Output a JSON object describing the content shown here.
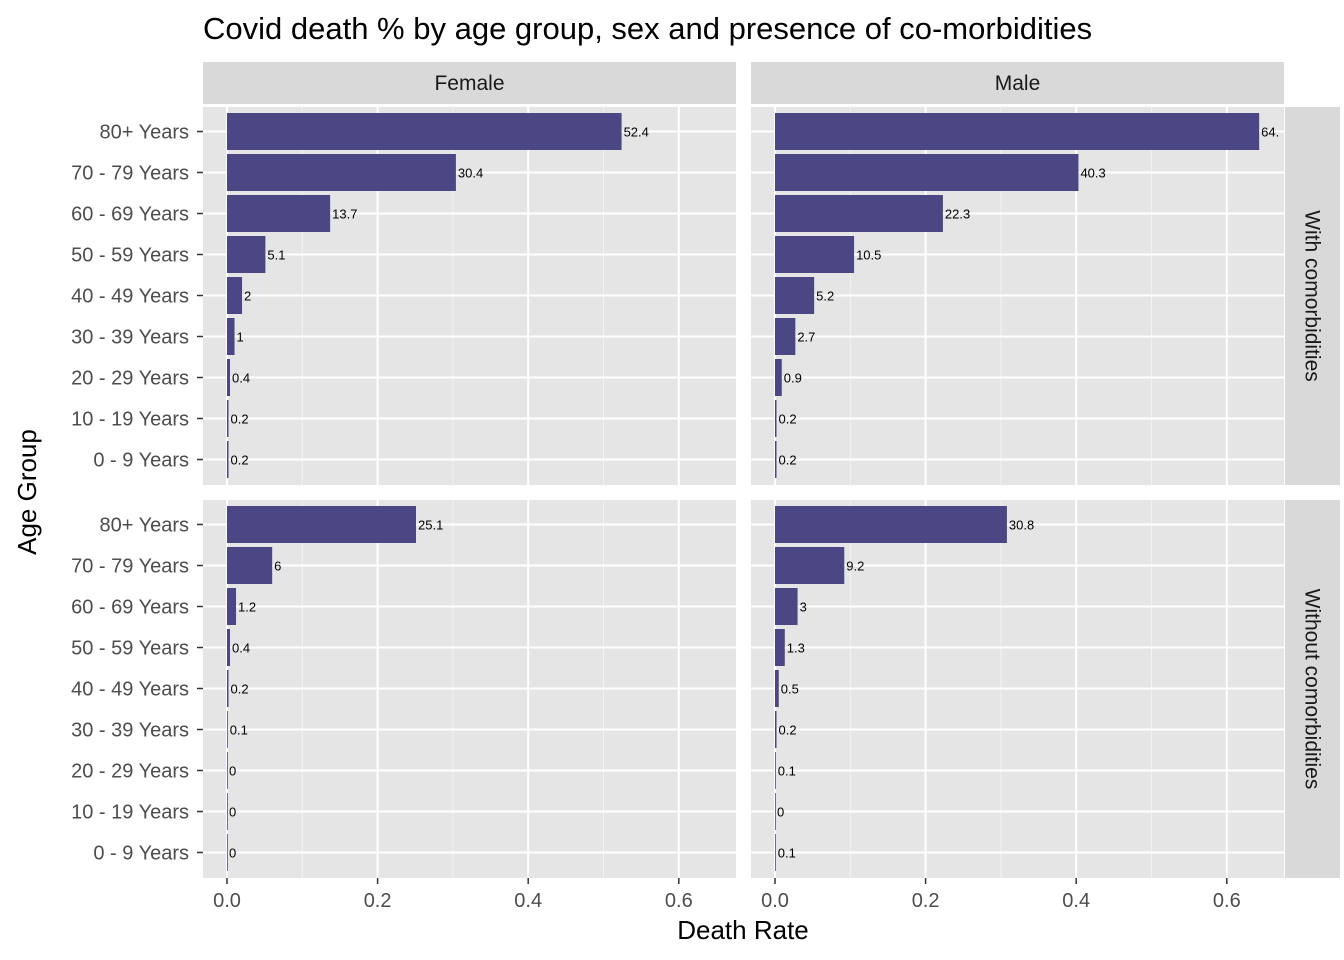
{
  "chart_data": {
    "type": "bar",
    "orientation": "horizontal",
    "title": "Covid death % by age group, sex and presence of co-morbidities",
    "xlabel": "Death Rate",
    "ylabel": "Age Group",
    "xlim": [
      0,
      0.67
    ],
    "x_ticks": [
      "0.0",
      "0.2",
      "0.4",
      "0.6"
    ],
    "x_tick_values": [
      0,
      0.2,
      0.4,
      0.6
    ],
    "grid": true,
    "bar_color": "#4b4785",
    "panel_background": "#e5e5e5",
    "strip_background": "#d9d9d9",
    "categories": [
      "80+ Years",
      "70 - 79 Years",
      "60 - 69 Years",
      "50 - 59 Years",
      "40 - 49 Years",
      "30 - 39 Years",
      "20 - 29 Years",
      "10 - 19 Years",
      "0 - 9 Years"
    ],
    "facet_columns": [
      "Female",
      "Male"
    ],
    "facet_rows": [
      "With comorbidities",
      "Without comorbidities"
    ],
    "panels": [
      {
        "col": "Female",
        "row": "With comorbidities",
        "values": [
          0.524,
          0.304,
          0.137,
          0.051,
          0.02,
          0.01,
          0.004,
          0.002,
          0.002
        ],
        "labels": [
          "52.4",
          "30.4",
          "13.7",
          "5.1",
          "2",
          "1",
          "0.4",
          "0.2",
          "0.2"
        ]
      },
      {
        "col": "Male",
        "row": "With comorbidities",
        "values": [
          0.643,
          0.403,
          0.223,
          0.105,
          0.052,
          0.027,
          0.009,
          0.002,
          0.002
        ],
        "labels": [
          "64.",
          "40.3",
          "22.3",
          "10.5",
          "5.2",
          "2.7",
          "0.9",
          "0.2",
          "0.2"
        ]
      },
      {
        "col": "Female",
        "row": "Without comorbidities",
        "values": [
          0.251,
          0.06,
          0.012,
          0.004,
          0.002,
          0.001,
          0.0,
          0.0,
          0.0
        ],
        "labels": [
          "25.1",
          "6",
          "1.2",
          "0.4",
          "0.2",
          "0.1",
          "0",
          "0",
          "0"
        ]
      },
      {
        "col": "Male",
        "row": "Without comorbidities",
        "values": [
          0.308,
          0.092,
          0.03,
          0.013,
          0.005,
          0.002,
          0.001,
          0.0,
          0.001
        ],
        "labels": [
          "30.8",
          "9.2",
          "3",
          "1.3",
          "0.5",
          "0.2",
          "0.1",
          "0",
          "0.1"
        ]
      }
    ]
  }
}
